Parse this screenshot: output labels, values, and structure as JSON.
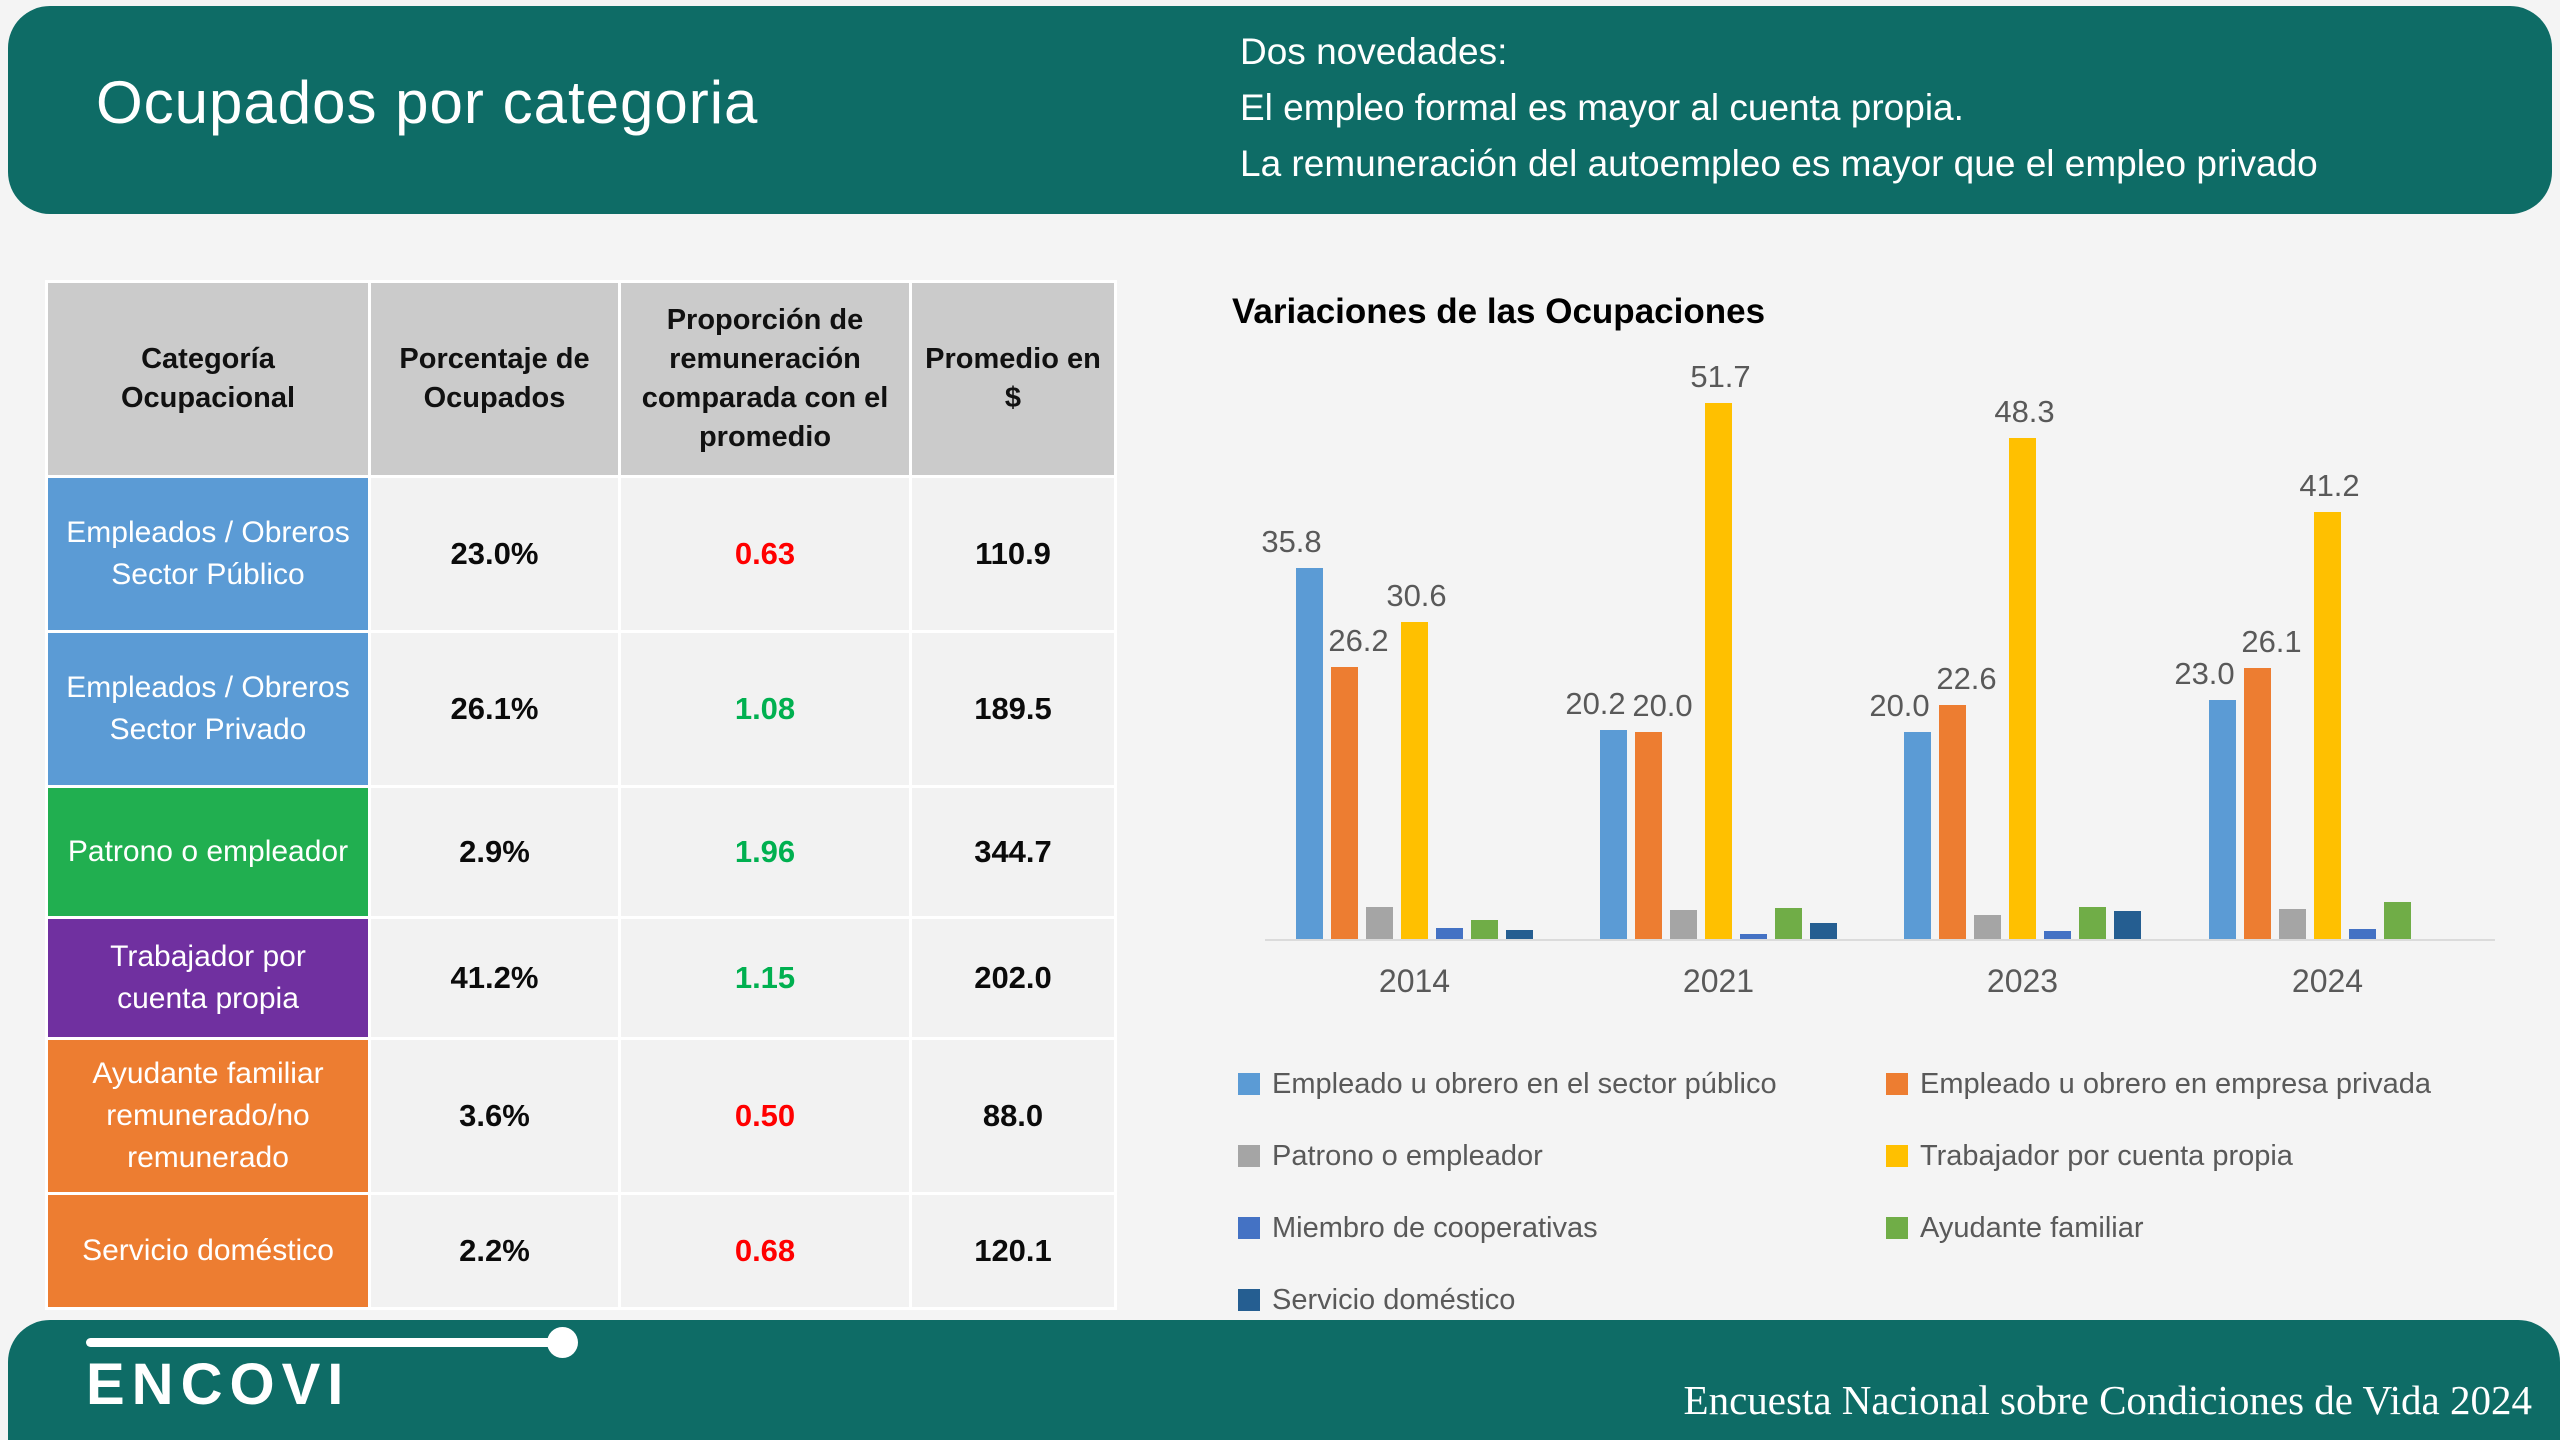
{
  "header": {
    "title": "Ocupados por categoria",
    "notes": [
      "Dos novedades:",
      "El empleo formal es mayor al cuenta propia.",
      "La remuneración del autoempleo es mayor que el empleo privado"
    ]
  },
  "colors": {
    "teal": "#0E6C66",
    "slide_bg": "#F4F4F4",
    "table_header_bg": "#CBCBCB",
    "table_cell_bg": "#F2F2F2",
    "negative_red": "#FF0000",
    "positive_green": "#00B050"
  },
  "table": {
    "columns": [
      "Categoría Ocupacional",
      "Porcentaje de Ocupados",
      "Proporción de remuneración comparada con el promedio",
      "Promedio en $"
    ],
    "rows": [
      {
        "category": "Empleados / Obreros Sector Público",
        "category_bg": "#5B9BD5",
        "pct": "23.0%",
        "ratio": "0.63",
        "ratio_color": "#FF0000",
        "avg": "110.9"
      },
      {
        "category": "Empleados / Obreros Sector Privado",
        "category_bg": "#5B9BD5",
        "pct": "26.1%",
        "ratio": "1.08",
        "ratio_color": "#00B050",
        "avg": "189.5"
      },
      {
        "category": "Patrono o empleador",
        "category_bg": "#21AF50",
        "pct": "2.9%",
        "ratio": "1.96",
        "ratio_color": "#00B050",
        "avg": "344.7"
      },
      {
        "category": "Trabajador por cuenta propia",
        "category_bg": "#7030A0",
        "pct": "41.2%",
        "ratio": "1.15",
        "ratio_color": "#00B050",
        "avg": "202.0"
      },
      {
        "category": "Ayudante familiar remunerado/no remunerado",
        "category_bg": "#ED7D31",
        "pct": "3.6%",
        "ratio": "0.50",
        "ratio_color": "#FF0000",
        "avg": "88.0"
      },
      {
        "category": "Servicio doméstico",
        "category_bg": "#ED7D31",
        "pct": "2.2%",
        "ratio": "0.68",
        "ratio_color": "#FF0000",
        "avg": "120.1"
      }
    ]
  },
  "chart_data": {
    "type": "bar",
    "title": "Variaciones de las Ocupaciones",
    "categories": [
      "2014",
      "2021",
      "2023",
      "2024"
    ],
    "series": [
      {
        "name": "Empleado u obrero en el sector público",
        "color": "#5B9BD5",
        "values": [
          35.8,
          20.2,
          20.0,
          23.0
        ],
        "data_labels": true
      },
      {
        "name": "Empleado u obrero en empresa privada",
        "color": "#ED7D31",
        "values": [
          26.2,
          20.0,
          22.6,
          26.1
        ],
        "data_labels": true
      },
      {
        "name": "Patrono o empleador",
        "color": "#A5A5A5",
        "values": [
          3.1,
          2.8,
          2.3,
          2.9
        ],
        "data_labels": false
      },
      {
        "name": "Trabajador por cuenta propia",
        "color": "#FFC000",
        "values": [
          30.6,
          51.7,
          48.3,
          41.2
        ],
        "data_labels": true
      },
      {
        "name": "Miembro de cooperativas",
        "color": "#4472C4",
        "values": [
          1.1,
          0.5,
          0.8,
          1.0
        ],
        "data_labels": false
      },
      {
        "name": "Ayudante familiar",
        "color": "#70AD47",
        "values": [
          1.8,
          3.0,
          3.1,
          3.6
        ],
        "data_labels": false
      },
      {
        "name": "Servicio doméstico",
        "color": "#255E91",
        "values": [
          0.9,
          1.5,
          2.7,
          null
        ],
        "data_labels": false
      }
    ],
    "ylim": [
      0,
      54
    ],
    "grid": false,
    "legend_position": "bottom"
  },
  "footer": {
    "logo_text": "ENCOVI",
    "right_text": "Encuesta Nacional sobre Condiciones de Vida 2024"
  }
}
